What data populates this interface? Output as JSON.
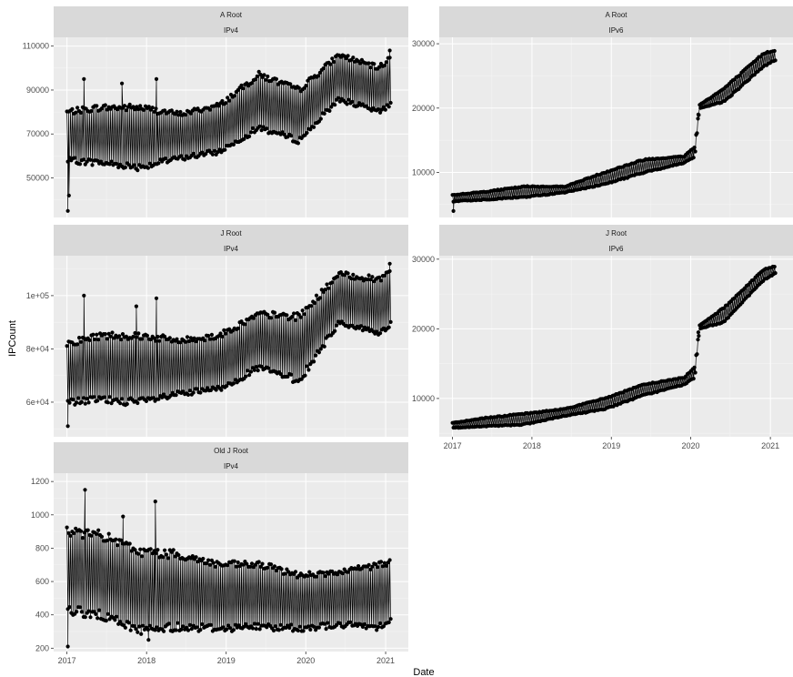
{
  "chart_data": {
    "type": "line",
    "xlabel": "Date",
    "ylabel": "IPCount",
    "x_ticks": [
      "2017",
      "2018",
      "2019",
      "2020",
      "2021"
    ],
    "x_range": [
      "2016-11-01",
      "2021-04-15"
    ],
    "style": {
      "panel_bg": "#ebebeb",
      "grid_major": "#ffffff",
      "strip_bg": "#d9d9d9",
      "series_color": "#000000"
    },
    "panels": [
      {
        "id": "a-root-ipv4",
        "strip_top": "A Root",
        "strip_bottom": "IPv4",
        "ylim": [
          32000,
          114000
        ],
        "y_ticks": [
          50000,
          70000,
          90000,
          110000
        ],
        "y_tick_labels": [
          "50000",
          "70000",
          "90000",
          "110000"
        ],
        "lower_envelope": [
          [
            "2017-01-01",
            58000
          ],
          [
            "2017-06-01",
            57000
          ],
          [
            "2017-12-01",
            55000
          ],
          [
            "2018-06-01",
            59000
          ],
          [
            "2018-12-01",
            62000
          ],
          [
            "2019-06-01",
            73000
          ],
          [
            "2019-12-01",
            67000
          ],
          [
            "2020-06-01",
            86000
          ],
          [
            "2020-12-01",
            80000
          ],
          [
            "2021-01-25",
            84000
          ]
        ],
        "upper_envelope": [
          [
            "2017-01-01",
            80000
          ],
          [
            "2017-06-01",
            82000
          ],
          [
            "2017-12-01",
            82000
          ],
          [
            "2018-06-01",
            79000
          ],
          [
            "2018-12-01",
            83000
          ],
          [
            "2019-06-01",
            97000
          ],
          [
            "2019-12-01",
            90000
          ],
          [
            "2020-06-01",
            106000
          ],
          [
            "2020-12-01",
            100000
          ],
          [
            "2021-01-25",
            105000
          ]
        ],
        "outliers": [
          [
            "2017-01-05",
            35000
          ],
          [
            "2017-01-10",
            42000
          ],
          [
            "2017-03-20",
            95000
          ],
          [
            "2017-09-10",
            93000
          ],
          [
            "2018-02-15",
            95000
          ],
          [
            "2021-01-20",
            108000
          ]
        ]
      },
      {
        "id": "a-root-ipv6",
        "strip_top": "A Root",
        "strip_bottom": "IPv6",
        "ylim": [
          3000,
          31000
        ],
        "y_ticks": [
          10000,
          20000,
          30000
        ],
        "y_tick_labels": [
          "10000",
          "20000",
          "30000"
        ],
        "lower_envelope": [
          [
            "2017-01-01",
            5500
          ],
          [
            "2017-06-01",
            5800
          ],
          [
            "2017-12-01",
            6200
          ],
          [
            "2018-06-01",
            6900
          ],
          [
            "2018-12-01",
            8200
          ],
          [
            "2019-06-01",
            10000
          ],
          [
            "2019-12-01",
            11500
          ],
          [
            "2020-01-20",
            12500
          ],
          [
            "2020-02-10",
            20000
          ],
          [
            "2020-06-01",
            21000
          ],
          [
            "2020-12-01",
            26500
          ],
          [
            "2021-01-25",
            27500
          ]
        ],
        "upper_envelope": [
          [
            "2017-01-01",
            6500
          ],
          [
            "2017-06-01",
            7000
          ],
          [
            "2017-12-01",
            7800
          ],
          [
            "2018-06-01",
            7800
          ],
          [
            "2018-12-01",
            10000
          ],
          [
            "2019-06-01",
            12000
          ],
          [
            "2019-12-01",
            12500
          ],
          [
            "2020-01-20",
            14000
          ],
          [
            "2020-02-10",
            20500
          ],
          [
            "2020-06-01",
            23000
          ],
          [
            "2020-12-01",
            28500
          ],
          [
            "2021-01-25",
            29000
          ]
        ],
        "outliers": [
          [
            "2017-01-05",
            4000
          ],
          [
            "2020-02-05",
            19000
          ]
        ]
      },
      {
        "id": "j-root-ipv4",
        "strip_top": "J Root",
        "strip_bottom": "IPv4",
        "ylim": [
          47000,
          115000
        ],
        "y_ticks": [
          60000,
          80000,
          100000
        ],
        "y_tick_labels": [
          "6e+04",
          "8e+04",
          "1e+05"
        ],
        "lower_envelope": [
          [
            "2017-01-01",
            60000
          ],
          [
            "2017-06-01",
            61000
          ],
          [
            "2017-12-01",
            60000
          ],
          [
            "2018-06-01",
            63000
          ],
          [
            "2018-12-01",
            65000
          ],
          [
            "2019-06-01",
            73000
          ],
          [
            "2019-12-01",
            68000
          ],
          [
            "2020-06-01",
            90000
          ],
          [
            "2020-12-01",
            86000
          ],
          [
            "2021-01-25",
            89000
          ]
        ],
        "upper_envelope": [
          [
            "2017-01-01",
            82000
          ],
          [
            "2017-06-01",
            85000
          ],
          [
            "2017-12-01",
            85000
          ],
          [
            "2018-06-01",
            83000
          ],
          [
            "2018-12-01",
            85000
          ],
          [
            "2019-06-01",
            93000
          ],
          [
            "2019-12-01",
            92000
          ],
          [
            "2020-06-01",
            108000
          ],
          [
            "2020-12-01",
            106000
          ],
          [
            "2021-01-25",
            110000
          ]
        ],
        "outliers": [
          [
            "2017-01-05",
            51000
          ],
          [
            "2017-03-20",
            100000
          ],
          [
            "2017-11-15",
            96000
          ],
          [
            "2018-02-15",
            99000
          ],
          [
            "2021-01-20",
            112000
          ]
        ]
      },
      {
        "id": "j-root-ipv6",
        "strip_top": "J Root",
        "strip_bottom": "IPv6",
        "ylim": [
          4500,
          30500
        ],
        "y_ticks": [
          10000,
          20000,
          30000
        ],
        "y_tick_labels": [
          "10000",
          "20000",
          "30000"
        ],
        "lower_envelope": [
          [
            "2017-01-01",
            5800
          ],
          [
            "2017-06-01",
            6000
          ],
          [
            "2017-12-01",
            6300
          ],
          [
            "2018-06-01",
            7500
          ],
          [
            "2018-12-01",
            8500
          ],
          [
            "2019-06-01",
            10500
          ],
          [
            "2019-12-01",
            12000
          ],
          [
            "2020-01-20",
            13000
          ],
          [
            "2020-02-10",
            20000
          ],
          [
            "2020-06-01",
            21000
          ],
          [
            "2020-12-01",
            27000
          ],
          [
            "2021-01-25",
            28000
          ]
        ],
        "upper_envelope": [
          [
            "2017-01-01",
            6500
          ],
          [
            "2017-06-01",
            7200
          ],
          [
            "2017-12-01",
            7800
          ],
          [
            "2018-06-01",
            8500
          ],
          [
            "2018-12-01",
            10000
          ],
          [
            "2019-06-01",
            12000
          ],
          [
            "2019-12-01",
            13000
          ],
          [
            "2020-01-20",
            14500
          ],
          [
            "2020-02-10",
            20500
          ],
          [
            "2020-06-01",
            23000
          ],
          [
            "2020-12-01",
            28500
          ],
          [
            "2021-01-25",
            29000
          ]
        ],
        "outliers": [
          [
            "2020-02-05",
            19500
          ]
        ]
      },
      {
        "id": "old-j-root-ipv4",
        "strip_top": "Old J Root",
        "strip_bottom": "IPv4",
        "ylim": [
          180,
          1250
        ],
        "y_ticks": [
          200,
          400,
          600,
          800,
          1000,
          1200
        ],
        "y_tick_labels": [
          "200",
          "400",
          "600",
          "800",
          "1000",
          "1200"
        ],
        "lower_envelope": [
          [
            "2017-01-01",
            430
          ],
          [
            "2017-06-01",
            400
          ],
          [
            "2017-12-01",
            310
          ],
          [
            "2018-06-01",
            330
          ],
          [
            "2018-12-01",
            320
          ],
          [
            "2019-06-01",
            330
          ],
          [
            "2019-12-01",
            320
          ],
          [
            "2020-06-01",
            340
          ],
          [
            "2020-12-01",
            330
          ],
          [
            "2021-01-25",
            380
          ]
        ],
        "upper_envelope": [
          [
            "2017-01-01",
            900
          ],
          [
            "2017-06-01",
            880
          ],
          [
            "2017-12-01",
            780
          ],
          [
            "2018-06-01",
            760
          ],
          [
            "2018-12-01",
            700
          ],
          [
            "2019-06-01",
            700
          ],
          [
            "2019-12-01",
            640
          ],
          [
            "2020-06-01",
            650
          ],
          [
            "2020-12-01",
            700
          ],
          [
            "2021-01-25",
            720
          ]
        ],
        "outliers": [
          [
            "2017-01-05",
            210
          ],
          [
            "2017-03-25",
            1150
          ],
          [
            "2017-09-15",
            990
          ],
          [
            "2018-02-10",
            1080
          ],
          [
            "2018-01-10",
            250
          ]
        ]
      }
    ]
  }
}
